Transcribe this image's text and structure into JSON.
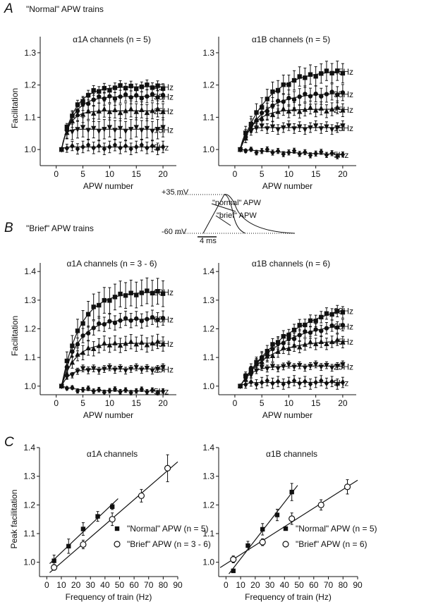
{
  "panels": {
    "A": {
      "letter": "A",
      "title": "\"Normal\" APW trains"
    },
    "B": {
      "letter": "B",
      "title": "\"Brief\" APW trains"
    },
    "C": {
      "letter": "C"
    }
  },
  "inset": {
    "v_top": "+35 mV",
    "v_bottom": "-60 mV",
    "normal": "\"normal\" APW",
    "brief": "\"brief\" APW",
    "scale": "4 ms"
  },
  "chart_data": [
    {
      "id": "A1",
      "type": "line",
      "title": "α1A channels (n = 5)",
      "xlabel": "APW number",
      "ylabel": "Facilitation",
      "xlim": [
        -3,
        22.5
      ],
      "ylim": [
        0.95,
        1.35
      ],
      "xticks": [
        0,
        5,
        10,
        15,
        20
      ],
      "yticks": [
        1.0,
        1.1,
        1.2,
        1.3
      ],
      "series": [
        {
          "name": "45Hz",
          "marker": "square",
          "plateau": 1.195,
          "tau": 2.5,
          "err": 0.015
        },
        {
          "name": "35Hz",
          "marker": "circle",
          "plateau": 1.165,
          "tau": 2.2,
          "err": 0.02
        },
        {
          "name": "25Hz",
          "marker": "triangle-up",
          "plateau": 1.12,
          "tau": 1.5,
          "err": 0.025
        },
        {
          "name": "15Hz",
          "marker": "triangle-down",
          "plateau": 1.063,
          "tau": 0.6,
          "err": 0.03
        },
        {
          "name": "5Hz",
          "marker": "diamond",
          "plateau": 1.008,
          "tau": 0.5,
          "err": 0.018
        }
      ]
    },
    {
      "id": "A2",
      "type": "line",
      "title": "α1B channels (n = 5)",
      "xlabel": "APW number",
      "ylabel": "",
      "xlim": [
        -3,
        22.5
      ],
      "ylim": [
        0.95,
        1.35
      ],
      "xticks": [
        0,
        5,
        10,
        15,
        20
      ],
      "yticks": [
        1.0,
        1.1,
        1.2,
        1.3
      ],
      "series": [
        {
          "name": "45Hz",
          "marker": "square",
          "plateau": 1.248,
          "tau": 5,
          "err": 0.03
        },
        {
          "name": "35Hz",
          "marker": "circle",
          "plateau": 1.175,
          "tau": 4,
          "err": 0.025
        },
        {
          "name": "25Hz",
          "marker": "triangle-up",
          "plateau": 1.125,
          "tau": 2.5,
          "err": 0.02
        },
        {
          "name": "15Hz",
          "marker": "triangle-down",
          "plateau": 1.068,
          "tau": 0.8,
          "err": 0.015
        },
        {
          "name": "5Hz",
          "marker": "diamond",
          "plateau": 0.975,
          "tau": 20,
          "err": 0.008
        }
      ]
    },
    {
      "id": "B1",
      "type": "line",
      "title": "α1A channels (n = 3 - 6)",
      "xlabel": "APW number",
      "ylabel": "Facilitation",
      "xlim": [
        -3,
        22.5
      ],
      "ylim": [
        0.97,
        1.43
      ],
      "xticks": [
        0,
        5,
        10,
        15,
        20
      ],
      "yticks": [
        1.0,
        1.1,
        1.2,
        1.3,
        1.4
      ],
      "series": [
        {
          "name": "83Hz",
          "marker": "square",
          "plateau": 1.33,
          "tau": 3.5,
          "err": 0.045
        },
        {
          "name": "65Hz",
          "marker": "circle",
          "plateau": 1.235,
          "tau": 3,
          "err": 0.025
        },
        {
          "name": "45Hz",
          "marker": "triangle-up",
          "plateau": 1.15,
          "tau": 2.5,
          "err": 0.025
        },
        {
          "name": "25Hz",
          "marker": "triangle-down",
          "plateau": 1.06,
          "tau": 1.5,
          "err": 0.012
        },
        {
          "name": "5Hz",
          "marker": "diamond",
          "plateau": 0.983,
          "tau": 3,
          "err": 0.008
        }
      ]
    },
    {
      "id": "B2",
      "type": "line",
      "title": "α1B channels (n = 6)",
      "xlabel": "APW number",
      "ylabel": "",
      "xlim": [
        -3,
        22.5
      ],
      "ylim": [
        0.97,
        1.43
      ],
      "xticks": [
        0,
        5,
        10,
        15,
        20
      ],
      "yticks": [
        1.0,
        1.1,
        1.2,
        1.3,
        1.4
      ],
      "series": [
        {
          "name": "83Hz",
          "marker": "square",
          "plateau": 1.31,
          "tau": 10,
          "err": 0.02
        },
        {
          "name": "65Hz",
          "marker": "circle",
          "plateau": 1.225,
          "tau": 7,
          "err": 0.02
        },
        {
          "name": "45Hz",
          "marker": "triangle-up",
          "plateau": 1.16,
          "tau": 5,
          "err": 0.02
        },
        {
          "name": "25Hz",
          "marker": "triangle-down",
          "plateau": 1.07,
          "tau": 2,
          "err": 0.012
        },
        {
          "name": "5Hz",
          "marker": "diamond",
          "plateau": 1.013,
          "tau": 1,
          "err": 0.018
        }
      ]
    },
    {
      "id": "C1",
      "type": "scatter",
      "title": "α1A channels",
      "xlabel": "Frequency of train (Hz)",
      "ylabel": "Peak facilitation",
      "xlim": [
        -5,
        90
      ],
      "ylim": [
        0.95,
        1.4
      ],
      "xticks": [
        0,
        10,
        20,
        30,
        40,
        50,
        60,
        70,
        80,
        90
      ],
      "yticks": [
        1.0,
        1.1,
        1.2,
        1.3,
        1.4
      ],
      "series": [
        {
          "name": "\"Normal\" APW (n = 5)",
          "marker": "square",
          "x": [
            5,
            15,
            25,
            35,
            45
          ],
          "y": [
            1.005,
            1.056,
            1.116,
            1.16,
            1.194
          ],
          "err": [
            0.02,
            0.025,
            0.022,
            0.017,
            0.01
          ],
          "fit": [
            2,
            49
          ]
        },
        {
          "name": "\"Brief\" APW (n = 3 - 6)",
          "marker": "open-circle",
          "x": [
            5,
            25,
            45,
            65,
            83
          ],
          "y": [
            0.982,
            1.062,
            1.15,
            1.232,
            1.328
          ],
          "err": [
            0.01,
            0.015,
            0.022,
            0.022,
            0.047
          ],
          "fit": [
            2,
            90
          ]
        }
      ]
    },
    {
      "id": "C2",
      "type": "scatter",
      "title": "α1B channels",
      "xlabel": "Frequency of train (Hz)",
      "ylabel": "",
      "xlim": [
        -5,
        90
      ],
      "ylim": [
        0.95,
        1.4
      ],
      "xticks": [
        0,
        10,
        20,
        30,
        40,
        50,
        60,
        70,
        80,
        90
      ],
      "yticks": [
        1.0,
        1.1,
        1.2,
        1.3,
        1.4
      ],
      "series": [
        {
          "name": "\"Normal\" APW (n = 5)",
          "marker": "square",
          "x": [
            5,
            15,
            25,
            35,
            45
          ],
          "y": [
            0.97,
            1.058,
            1.115,
            1.165,
            1.245
          ],
          "err": [
            0,
            0.015,
            0.02,
            0.02,
            0.03
          ],
          "fit": [
            2,
            49
          ]
        },
        {
          "name": "\"Brief\" APW (n = 6)",
          "marker": "open-circle",
          "x": [
            5,
            25,
            45,
            65,
            83
          ],
          "y": [
            1.01,
            1.07,
            1.152,
            1.2,
            1.263
          ],
          "err": [
            0.012,
            0.012,
            0.02,
            0.018,
            0.025
          ],
          "fit": [
            -4,
            90
          ]
        }
      ]
    }
  ]
}
